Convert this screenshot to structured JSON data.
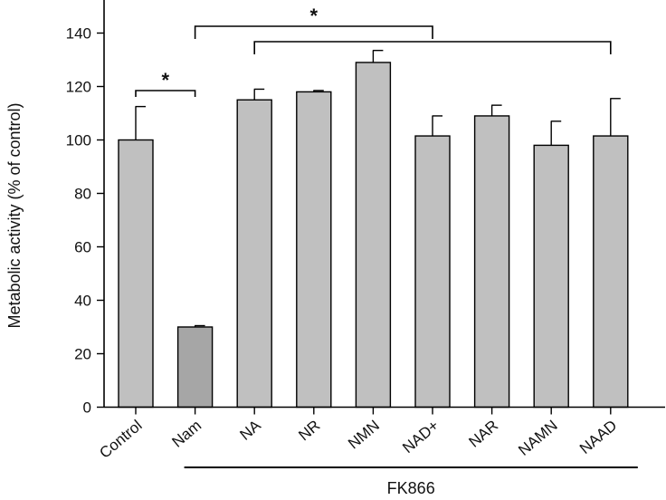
{
  "chart_data": {
    "type": "bar",
    "title": "",
    "xlabel": "",
    "ylabel": "Metabolic activity (% of control)",
    "ylim": [
      0,
      150
    ],
    "yticks": [
      0,
      20,
      40,
      60,
      80,
      100,
      120,
      140
    ],
    "categories": [
      "Control",
      "Nam",
      "NA",
      "NR",
      "NMN",
      "NAD+",
      "NAR",
      "NAMN",
      "NAAD"
    ],
    "values": [
      100,
      30,
      115,
      118,
      129,
      101.5,
      109,
      98,
      101.5
    ],
    "errors": [
      12.5,
      0.5,
      4,
      0.5,
      4.5,
      7.5,
      4,
      9,
      14
    ],
    "bar_colors": [
      "#c0c0c0",
      "#a6a6a6",
      "#c0c0c0",
      "#c0c0c0",
      "#c0c0c0",
      "#c0c0c0",
      "#c0c0c0",
      "#c0c0c0",
      "#c0c0c0"
    ],
    "group": {
      "label": "FK866",
      "from": "Nam",
      "to": "NAAD"
    },
    "significance": [
      {
        "type": "pair",
        "a": "Control",
        "b": "Nam",
        "label": "*"
      },
      {
        "type": "bracket",
        "from": "Nam",
        "to": "NAD+",
        "label": "*"
      },
      {
        "type": "bracket",
        "from": "NA",
        "to": "NAAD",
        "label": ""
      }
    ]
  }
}
